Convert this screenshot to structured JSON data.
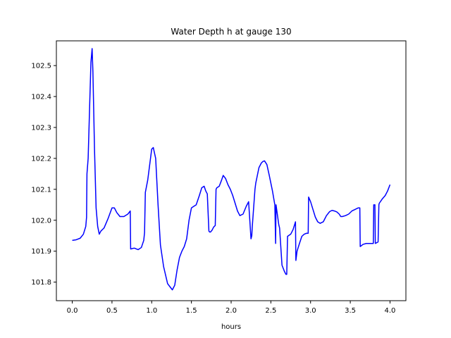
{
  "chart_data": {
    "type": "line",
    "title": "Water Depth h at gauge 130",
    "xlabel": "hours",
    "ylabel": "",
    "xlim": [
      -0.2,
      4.2
    ],
    "ylim": [
      101.74,
      102.58
    ],
    "xticks": [
      0.0,
      0.5,
      1.0,
      1.5,
      2.0,
      2.5,
      3.0,
      3.5,
      4.0
    ],
    "xtick_labels": [
      "0.0",
      "0.5",
      "1.0",
      "1.5",
      "2.0",
      "2.5",
      "3.0",
      "3.5",
      "4.0"
    ],
    "yticks": [
      101.8,
      101.9,
      102.0,
      102.1,
      102.2,
      102.3,
      102.4,
      102.5
    ],
    "ytick_labels": [
      "101.8",
      "101.9",
      "102.0",
      "102.1",
      "102.2",
      "102.3",
      "102.4",
      "102.5"
    ],
    "grid": false,
    "series": [
      {
        "color": "#0000ff",
        "x": [
          0.0,
          0.05,
          0.1,
          0.14,
          0.17,
          0.18,
          0.185,
          0.2,
          0.22,
          0.235,
          0.25,
          0.26,
          0.28,
          0.3,
          0.32,
          0.34,
          0.36,
          0.4,
          0.45,
          0.5,
          0.53,
          0.56,
          0.6,
          0.65,
          0.7,
          0.73,
          0.735,
          0.78,
          0.83,
          0.87,
          0.9,
          0.91,
          0.92,
          0.95,
          0.98,
          1.0,
          1.02,
          1.05,
          1.08,
          1.11,
          1.15,
          1.2,
          1.23,
          1.26,
          1.29,
          1.32,
          1.35,
          1.38,
          1.41,
          1.44,
          1.47,
          1.5,
          1.53,
          1.56,
          1.6,
          1.63,
          1.66,
          1.68,
          1.7,
          1.72,
          1.73,
          1.74,
          1.76,
          1.78,
          1.8,
          1.81,
          1.82,
          1.85,
          1.88,
          1.9,
          1.93,
          1.96,
          1.99,
          2.02,
          2.05,
          2.08,
          2.11,
          2.15,
          2.19,
          2.22,
          2.25,
          2.26,
          2.265,
          2.3,
          2.31,
          2.35,
          2.38,
          2.4,
          2.42,
          2.45,
          2.48,
          2.52,
          2.55,
          2.56,
          2.565,
          2.6,
          2.61,
          2.64,
          2.67,
          2.69,
          2.7,
          2.71,
          2.75,
          2.78,
          2.81,
          2.815,
          2.83,
          2.86,
          2.89,
          2.92,
          2.95,
          2.97,
          2.975,
          3.0,
          3.03,
          3.06,
          3.09,
          3.12,
          3.16,
          3.2,
          3.24,
          3.27,
          3.3,
          3.33,
          3.36,
          3.38,
          3.4,
          3.44,
          3.48,
          3.52,
          3.56,
          3.6,
          3.62,
          3.625,
          3.66,
          3.7,
          3.74,
          3.78,
          3.79,
          3.795,
          3.81,
          3.815,
          3.85,
          3.86,
          3.865,
          3.9,
          3.94,
          3.97,
          4.0
        ],
        "y": [
          101.935,
          101.937,
          101.942,
          101.955,
          101.98,
          102.01,
          102.15,
          102.2,
          102.38,
          102.51,
          102.555,
          102.48,
          102.23,
          102.04,
          101.98,
          101.955,
          101.965,
          101.975,
          102.005,
          102.04,
          102.04,
          102.025,
          102.012,
          102.012,
          102.02,
          102.03,
          101.907,
          101.91,
          101.905,
          101.912,
          101.935,
          101.96,
          102.09,
          102.13,
          102.19,
          102.23,
          102.235,
          102.2,
          102.05,
          101.92,
          101.85,
          101.795,
          101.785,
          101.775,
          101.79,
          101.84,
          101.88,
          101.9,
          101.915,
          101.94,
          102.0,
          102.04,
          102.045,
          102.05,
          102.08,
          102.105,
          102.11,
          102.095,
          102.085,
          101.965,
          101.962,
          101.962,
          101.968,
          101.978,
          101.983,
          102.1,
          102.105,
          102.11,
          102.13,
          102.145,
          102.135,
          102.115,
          102.1,
          102.08,
          102.055,
          102.03,
          102.015,
          102.02,
          102.045,
          102.06,
          101.94,
          101.95,
          101.975,
          102.1,
          102.12,
          102.17,
          102.185,
          102.19,
          102.192,
          102.18,
          102.145,
          102.095,
          102.05,
          101.925,
          102.05,
          101.985,
          101.975,
          101.855,
          101.835,
          101.825,
          101.825,
          101.948,
          101.955,
          101.97,
          101.995,
          101.87,
          101.9,
          101.925,
          101.948,
          101.955,
          101.958,
          101.958,
          102.075,
          102.06,
          102.035,
          102.01,
          101.995,
          101.99,
          101.995,
          102.015,
          102.028,
          102.032,
          102.03,
          102.027,
          102.02,
          102.012,
          102.012,
          102.015,
          102.02,
          102.03,
          102.035,
          102.04,
          102.04,
          101.915,
          101.922,
          101.925,
          101.925,
          101.925,
          101.925,
          102.05,
          102.05,
          101.925,
          101.93,
          102.05,
          102.055,
          102.068,
          102.08,
          102.095,
          102.115
        ]
      }
    ]
  }
}
